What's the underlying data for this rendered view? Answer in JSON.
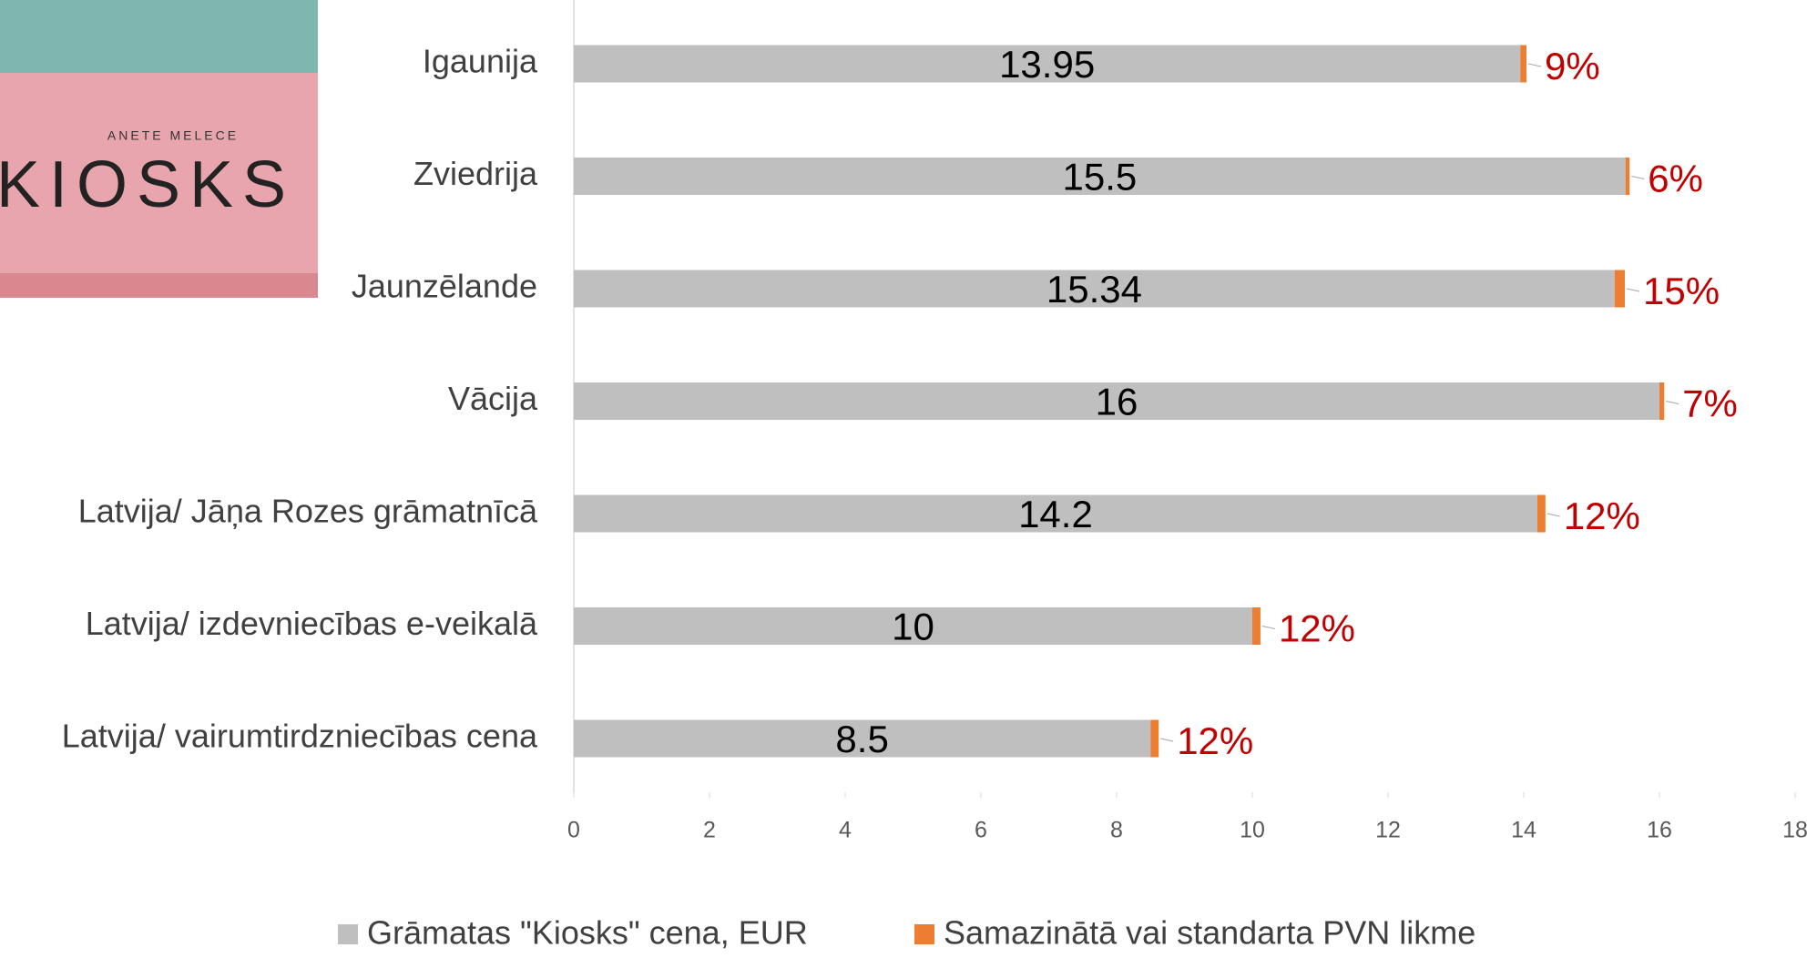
{
  "cover": {
    "author": "ANETE MELECE",
    "title": "KIOSKS"
  },
  "chart_data": {
    "type": "stacked-barh",
    "categories": [
      "Igaunija",
      "Zviedrija",
      "Jaunzēlande",
      "Vācija",
      "Latvija/ Jāņa Rozes grāmatnīcā",
      "Latvija/ izdevniecības e-veikalā",
      "Latvija/ vairumtirdzniecības cena"
    ],
    "series": [
      {
        "name": "Grāmatas \"Kiosks\" cena, EUR",
        "color": "#bfbfbf",
        "values": [
          13.95,
          15.5,
          15.34,
          16,
          14.2,
          10,
          8.5
        ]
      },
      {
        "name": "Samazinātā vai standarta PVN likme",
        "color": "#ed7d31",
        "values": [
          0.09,
          0.06,
          0.15,
          0.07,
          0.12,
          0.12,
          0.12
        ],
        "value_labels": [
          "9%",
          "6%",
          "15%",
          "7%",
          "12%",
          "12%",
          "12%"
        ],
        "label_color": "#c00000"
      }
    ],
    "xlim": [
      0,
      18
    ],
    "xticks": [
      0,
      2,
      4,
      6,
      8,
      10,
      12,
      14,
      16,
      18
    ],
    "grid": false
  }
}
